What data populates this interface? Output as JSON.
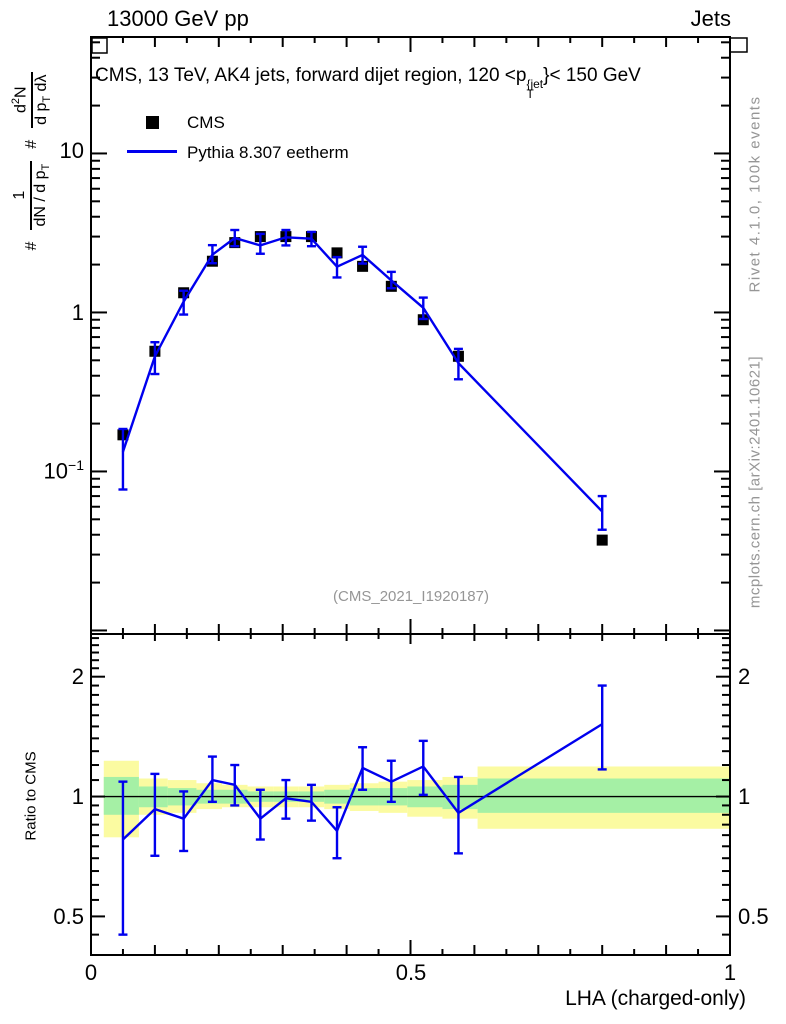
{
  "header": {
    "left": "13000 GeV pp",
    "right": "Jets"
  },
  "plot_title": {
    "pre": "CMS, 13 TeV, AK4 jets, forward dijet region, 120 <p",
    "sup": "{jet",
    "sub": "T",
    "post": "}< 150 GeV"
  },
  "legend": {
    "cms_label": "CMS",
    "mc_label": "Pythia 8.307 eetherm"
  },
  "y_axis_label": {
    "hash1": "#",
    "frac1_num": "1",
    "frac1_den_pre": "dN / d p",
    "frac1_den_sub": "T",
    "hash2": "#",
    "frac2_num_pre": "d",
    "frac2_num_sup": "2",
    "frac2_num_post": "N",
    "frac2_den_pre": "d p",
    "frac2_den_sub": "T",
    "frac2_den_post": " dλ"
  },
  "ratio_axis_label": "Ratio to CMS",
  "x_axis_label": "LHA (charged-only)",
  "watermark": "(CMS_2021_I1920187)",
  "side_notes": {
    "rivet": "Rivet 4.1.0,  100k events",
    "mcplots": "mcplots.cern.ch [arXiv:2401.10621]"
  },
  "tick_labels": {
    "main_y_10": "10",
    "main_y_1": "1",
    "main_y_exp_base": "10",
    "main_y_exp": "−1",
    "ratio_y": [
      "2",
      "1",
      "0.5"
    ],
    "x": [
      "0",
      "0.5",
      "1"
    ]
  },
  "colors": {
    "mc_line": "#0000ee",
    "data_marker": "#000000",
    "band_yellow": "#fbfba1",
    "band_green": "#a5f0a5",
    "gray_text": "#969696",
    "watermark_gray": "#ababab",
    "ref_line": "#000000"
  },
  "chart_data": {
    "type": "line",
    "title": "CMS, 13 TeV, AK4 jets, forward dijet region, 120 < pT^{jet} < 150 GeV",
    "xlabel": "LHA (charged-only)",
    "ylabel": "# 1/(dN/dp_T) d2N/(dp_T dlambda)",
    "ylabel_ratio": "Ratio to CMS",
    "xlim": [
      0,
      1
    ],
    "ylim_main": [
      0.0095,
      54
    ],
    "ylim_ratio": [
      0.4,
      2.56
    ],
    "x": [
      0.05,
      0.1,
      0.145,
      0.19,
      0.225,
      0.265,
      0.305,
      0.345,
      0.385,
      0.425,
      0.47,
      0.52,
      0.575,
      0.8
    ],
    "series": [
      {
        "name": "CMS",
        "style": "black-squares",
        "values": [
          0.17,
          0.57,
          1.33,
          2.1,
          2.75,
          3.0,
          3.0,
          3.0,
          2.37,
          1.95,
          1.46,
          0.9,
          0.53,
          0.037
        ]
      },
      {
        "name": "Pythia 8.307 eetherm",
        "style": "blue-line-errorbars",
        "values": [
          0.133,
          0.53,
          1.17,
          2.31,
          2.94,
          2.64,
          2.97,
          2.91,
          1.94,
          2.3,
          1.59,
          1.07,
          0.48,
          0.056
        ],
        "err_lo": [
          0.077,
          0.41,
          0.97,
          2.04,
          2.61,
          2.34,
          2.64,
          2.61,
          1.66,
          2.03,
          1.42,
          0.91,
          0.38,
          0.043
        ],
        "err_hi": [
          0.185,
          0.65,
          1.37,
          2.65,
          3.3,
          3.12,
          3.3,
          3.21,
          2.23,
          2.59,
          1.8,
          1.24,
          0.59,
          0.07
        ]
      }
    ],
    "ratio": {
      "reference": 1,
      "values": [
        0.78,
        0.93,
        0.88,
        1.1,
        1.07,
        0.88,
        0.99,
        0.97,
        0.82,
        1.18,
        1.09,
        1.19,
        0.91,
        1.52
      ],
      "err_lo": [
        0.45,
        0.71,
        0.73,
        0.97,
        0.95,
        0.78,
        0.88,
        0.87,
        0.7,
        1.04,
        0.97,
        1.01,
        0.72,
        1.17
      ],
      "err_hi": [
        1.09,
        1.14,
        1.03,
        1.26,
        1.2,
        1.04,
        1.1,
        1.07,
        0.94,
        1.33,
        1.23,
        1.38,
        1.12,
        1.9
      ]
    },
    "bands": [
      {
        "x0": 0.02,
        "x1": 0.075,
        "yellow": [
          0.79,
          1.23
        ],
        "green": [
          0.9,
          1.12
        ]
      },
      {
        "x0": 0.075,
        "x1": 0.12,
        "yellow": [
          0.9,
          1.11
        ],
        "green": [
          0.94,
          1.06
        ]
      },
      {
        "x0": 0.12,
        "x1": 0.165,
        "yellow": [
          0.91,
          1.1
        ],
        "green": [
          0.95,
          1.05
        ]
      },
      {
        "x0": 0.165,
        "x1": 0.205,
        "yellow": [
          0.93,
          1.08
        ],
        "green": [
          0.96,
          1.04
        ]
      },
      {
        "x0": 0.205,
        "x1": 0.245,
        "yellow": [
          0.94,
          1.07
        ],
        "green": [
          0.96,
          1.04
        ]
      },
      {
        "x0": 0.245,
        "x1": 0.285,
        "yellow": [
          0.94,
          1.06
        ],
        "green": [
          0.97,
          1.03
        ]
      },
      {
        "x0": 0.285,
        "x1": 0.325,
        "yellow": [
          0.94,
          1.06
        ],
        "green": [
          0.97,
          1.03
        ]
      },
      {
        "x0": 0.325,
        "x1": 0.365,
        "yellow": [
          0.94,
          1.06
        ],
        "green": [
          0.97,
          1.03
        ]
      },
      {
        "x0": 0.365,
        "x1": 0.405,
        "yellow": [
          0.93,
          1.07
        ],
        "green": [
          0.96,
          1.04
        ]
      },
      {
        "x0": 0.405,
        "x1": 0.45,
        "yellow": [
          0.92,
          1.08
        ],
        "green": [
          0.95,
          1.05
        ]
      },
      {
        "x0": 0.45,
        "x1": 0.495,
        "yellow": [
          0.91,
          1.09
        ],
        "green": [
          0.95,
          1.05
        ]
      },
      {
        "x0": 0.495,
        "x1": 0.55,
        "yellow": [
          0.89,
          1.1
        ],
        "green": [
          0.94,
          1.06
        ]
      },
      {
        "x0": 0.55,
        "x1": 0.605,
        "yellow": [
          0.88,
          1.12
        ],
        "green": [
          0.93,
          1.07
        ]
      },
      {
        "x0": 0.605,
        "x1": 1.0,
        "yellow": [
          0.83,
          1.19
        ],
        "green": [
          0.91,
          1.11
        ]
      }
    ]
  }
}
